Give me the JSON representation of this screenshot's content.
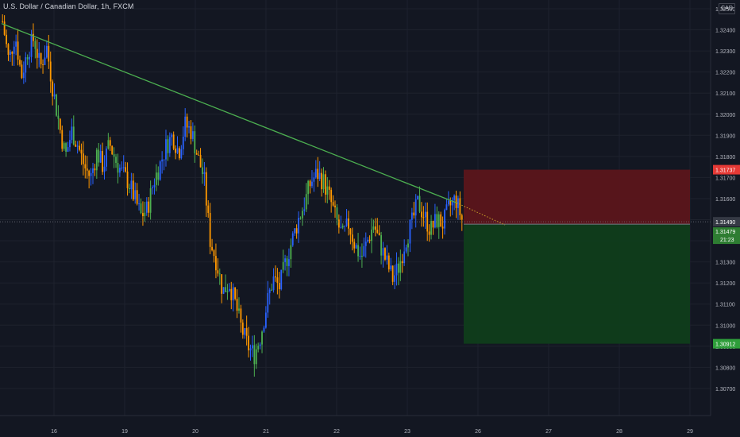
{
  "symbol_title": "U.S. Dollar / Canadian Dollar, 1h, FXCM",
  "currency": "CAD",
  "colors": {
    "background": "#131722",
    "grid": "#1e222d",
    "up_candle": "#2962ff",
    "down_candle": "#ff9800",
    "trend_line": "#4caf50",
    "stop_zone": "#5b151b",
    "target_zone": "#0f3d1b",
    "stop_label": "#e53935",
    "target_label": "#2e9e3a",
    "current_price_label": "#363a45",
    "entry_label": "#2e7d32"
  },
  "price_axis": {
    "ticks": [
      "1.32500",
      "1.32400",
      "1.32300",
      "1.32200",
      "1.32100",
      "1.32000",
      "1.31900",
      "1.31800",
      "1.31700",
      "1.31600",
      "1.31500",
      "1.31400",
      "1.31300",
      "1.31200",
      "1.31100",
      "1.31000",
      "1.30900",
      "1.30800",
      "1.30700"
    ]
  },
  "time_axis": {
    "ticks": [
      "16",
      "19",
      "20",
      "21",
      "22",
      "23",
      "26",
      "27",
      "28",
      "29"
    ]
  },
  "labels": {
    "stop_price": "1.31737",
    "current_price": "1.31490",
    "entry_price": "1.31479",
    "countdown": "21:23",
    "target_price": "1.30912"
  },
  "chart_data": {
    "type": "candlestick",
    "symbol": "USDCAD",
    "timeframe": "1h",
    "ylim": [
      1.3065,
      1.3255
    ],
    "x_ticks": [
      "16",
      "19",
      "20",
      "21",
      "22",
      "23",
      "26",
      "27",
      "28",
      "29"
    ],
    "trend_line": {
      "from": [
        "15",
        1.3243
      ],
      "to": [
        "26",
        1.315
      ]
    },
    "position": {
      "entry": 1.31479,
      "stop": 1.31737,
      "target": 1.30912
    },
    "last_price": 1.3149,
    "price_path": [
      1.3244,
      1.3225,
      1.3238,
      1.3218,
      1.323,
      1.3236,
      1.3222,
      1.3232,
      1.3212,
      1.3195,
      1.318,
      1.3192,
      1.3185,
      1.3175,
      1.317,
      1.3182,
      1.3175,
      1.3186,
      1.3178,
      1.3172,
      1.3168,
      1.316,
      1.3152,
      1.3155,
      1.3168,
      1.3176,
      1.3185,
      1.319,
      1.3182,
      1.3195,
      1.3192,
      1.318,
      1.317,
      1.314,
      1.313,
      1.3116,
      1.312,
      1.311,
      1.3098,
      1.309,
      1.3086,
      1.3095,
      1.311,
      1.3122,
      1.3118,
      1.313,
      1.314,
      1.315,
      1.3158,
      1.3168,
      1.3172,
      1.3168,
      1.316,
      1.315,
      1.3142,
      1.3148,
      1.3138,
      1.3132,
      1.314,
      1.3148,
      1.3138,
      1.313,
      1.3122,
      1.3128,
      1.314,
      1.3148,
      1.3158,
      1.3152,
      1.3145,
      1.315,
      1.3148,
      1.3156,
      1.316,
      1.315
    ]
  }
}
